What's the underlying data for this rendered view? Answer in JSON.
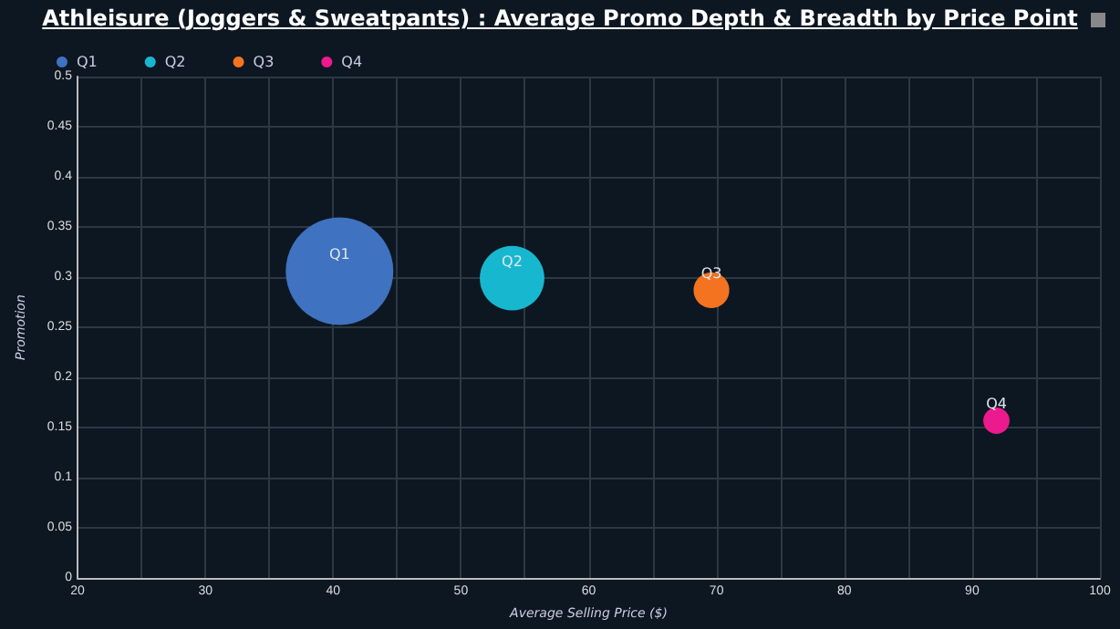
{
  "chart_data": {
    "type": "bubble",
    "title": "Athleisure (Joggers & Sweatpants) : Average Promo Depth & Breadth by Price Point",
    "xlabel": "Average Selling Price ($)",
    "ylabel": "Promotion",
    "series": [
      {
        "name": "Q1",
        "color": "#3f72c0",
        "x": [
          40.5
        ],
        "values": [
          0.306
        ],
        "sizes": [
          1
        ]
      },
      {
        "name": "Q2",
        "color": "#17b8cf",
        "x": [
          54.0
        ],
        "values": [
          0.299
        ],
        "sizes": [
          0.36
        ]
      },
      {
        "name": "Q3",
        "color": "#f47320",
        "x": [
          69.6
        ],
        "values": [
          0.287
        ],
        "sizes": [
          0.11
        ]
      },
      {
        "name": "Q4",
        "color": "#ec1a8c",
        "x": [
          91.9
        ],
        "values": [
          0.157
        ],
        "sizes": [
          0.06
        ]
      }
    ],
    "xlim": [
      20,
      100
    ],
    "xticks": [
      20,
      {
        "value": 25,
        "label": null
      },
      30,
      {
        "value": 35,
        "label": null
      },
      40,
      {
        "value": 45,
        "label": null
      },
      50,
      {
        "value": 55,
        "label": null
      },
      60,
      {
        "value": 65,
        "label": null
      },
      70,
      {
        "value": 75,
        "label": null
      },
      80,
      {
        "value": 85,
        "label": null
      },
      90,
      {
        "value": 95,
        "label": null
      },
      100
    ],
    "ylim": [
      0,
      0.5
    ],
    "yticks": [
      0,
      0.05,
      0.1,
      0.15,
      0.2,
      0.25,
      0.3,
      0.35,
      0.4,
      0.45,
      0.5
    ],
    "grid": true,
    "legend": "top left"
  }
}
